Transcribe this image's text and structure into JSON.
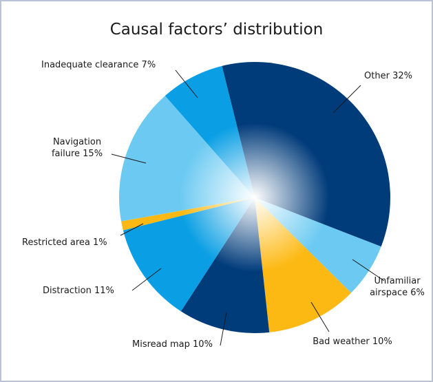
{
  "chart_data": {
    "type": "pie",
    "title": "Causal factors’ distribution",
    "categories": [
      "Other",
      "Unfamiliar airspace",
      "Bad weather",
      "Misread map",
      "Distraction",
      "Restricted area",
      "Navigation failure",
      "Inadequate clearance"
    ],
    "values": [
      32,
      6,
      10,
      10,
      11,
      1,
      15,
      7
    ],
    "value_labels": [
      "32%",
      "6%",
      "10%",
      "10%",
      "11%",
      "1%",
      "15%",
      "7%"
    ],
    "colors": [
      "#003b7a",
      "#6ccaf2",
      "#fdb913",
      "#003b7a",
      "#0a9fe4",
      "#fdb913",
      "#6ccaf2",
      "#0a9fe4"
    ]
  }
}
